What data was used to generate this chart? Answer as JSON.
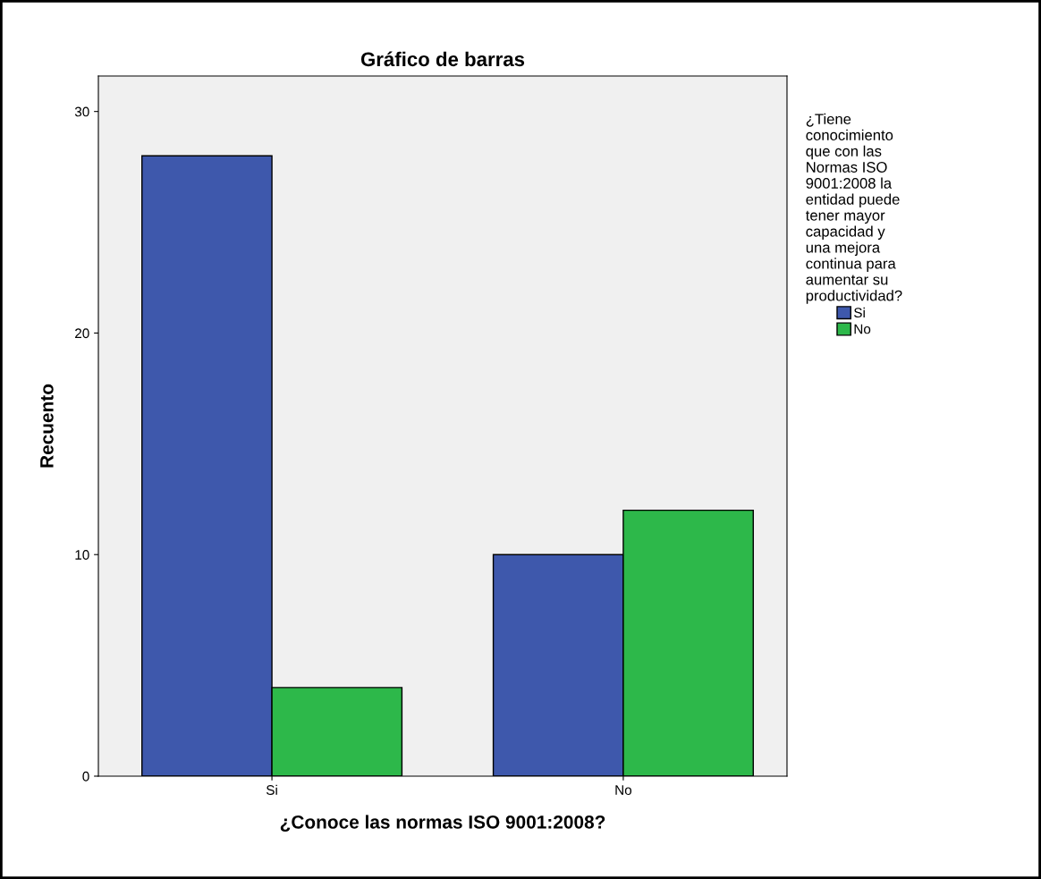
{
  "chart_data": {
    "type": "bar",
    "title": "Gráfico de barras",
    "xlabel": "¿Conoce las normas ISO 9001:2008?",
    "ylabel": "Recuento",
    "legend_title": "¿Tiene\nconocimiento\nque con las\nNormas ISO\n9001:2008 la\nentidad puede\ntener mayor\ncapacidad y\nuna mejora\ncontinua para\naumentar su\nproductividad?",
    "categories": [
      "Si",
      "No"
    ],
    "series": [
      {
        "name": "Si",
        "color": "#3e58ac",
        "values": [
          28,
          10
        ]
      },
      {
        "name": "No",
        "color": "#2db84a",
        "values": [
          4,
          12
        ]
      }
    ],
    "ylim": [
      0,
      31.6
    ],
    "yticks": [
      0,
      10,
      20,
      30
    ],
    "grid": false,
    "legend": "right"
  }
}
